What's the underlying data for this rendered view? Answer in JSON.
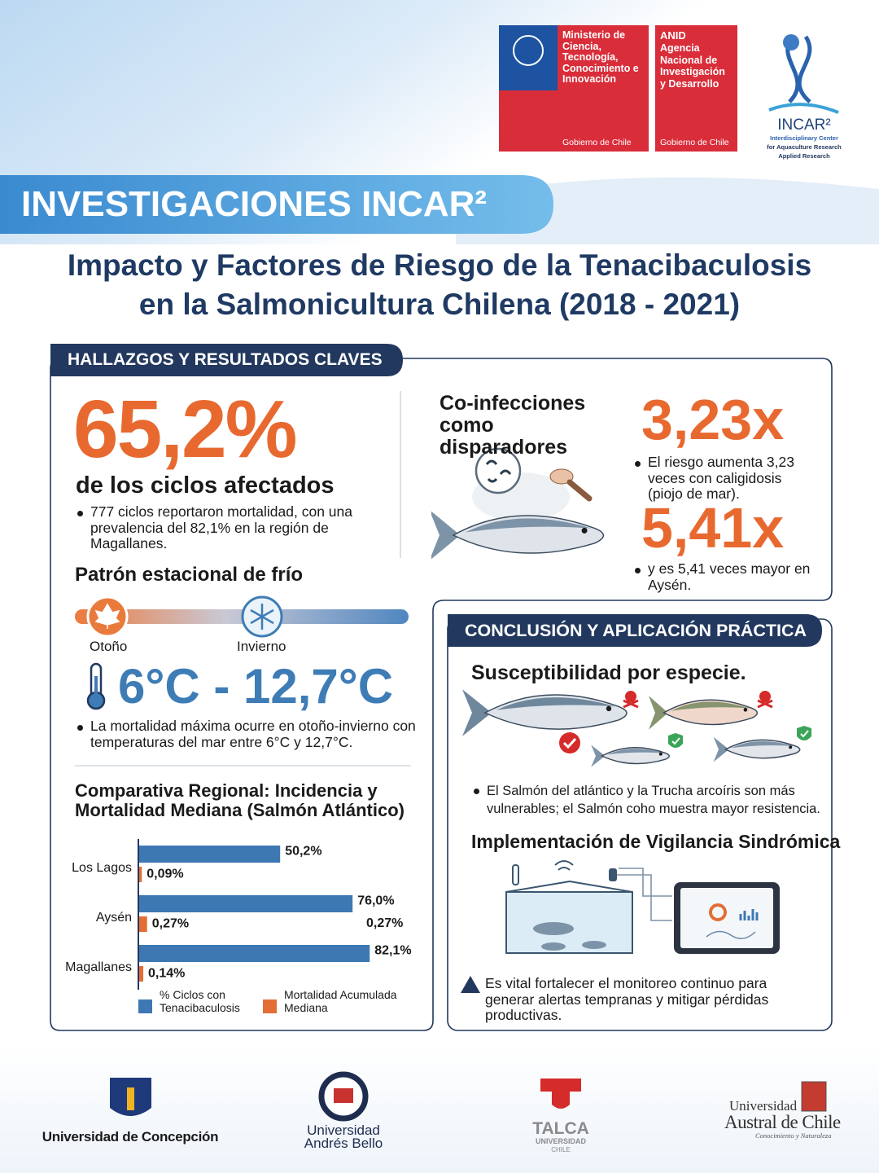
{
  "header": {
    "ministry": {
      "name": "Ministerio de Ciencia, Tecnología, Conocimiento e Innovación",
      "footer": "Gobierno de Chile"
    },
    "anid": {
      "acronym": "ANID",
      "name": "Agencia Nacional de Investigación y Desarrollo",
      "footer": "Gobierno de Chile"
    },
    "incar": {
      "name": "INCAR²",
      "line1": "Interdisciplinary Center",
      "line2": "for Aquaculture Research",
      "line3": "Applied Research"
    }
  },
  "banner": "INVESTIGACIONES INCAR²",
  "title": [
    "Impacto y Factores de Riesgo de la Tenacibaculosis",
    "en la Salmonicultura Chilena (2018 - 2021)"
  ],
  "findings": {
    "tab": "HALLAZGOS Y RESULTADOS CLAVES",
    "headline_stat": "65,2%",
    "headline_label": "de los ciclos afectados",
    "headline_note": "777 ciclos reportaron mortalidad, con una prevalencia del 82,1% en la región de Magallanes.",
    "season": {
      "heading": "Patrón estacional de frío",
      "autumn": "Otoño",
      "winter": "Invierno",
      "range": "6°C - 12,7°C",
      "note": "La mortalidad máxima ocurre en otoño-invierno con temperaturas del mar entre 6°C y 12,7°C."
    },
    "coinfection": {
      "heading": "Co-infecciones como disparadores",
      "stat1": "3,23x",
      "note1": "El riesgo aumenta 3,23 veces con caligidosis (piojo de mar).",
      "stat2": "5,41x",
      "note2": "y es 5,41 veces mayor en Aysén."
    }
  },
  "regional_chart": {
    "type": "bar",
    "orientation": "horizontal",
    "title": "Comparativa Regional: Incidencia y Mortalidad Mediana (Salmón Atlántico)",
    "categories": [
      "Los Lagos",
      "Aysén",
      "Magallanes"
    ],
    "series": [
      {
        "name": "% Ciclos con Tenacibaculosis",
        "color": "#3d78b3",
        "values": [
          50.2,
          76.0,
          82.1
        ],
        "value_labels": [
          "50,2%",
          "76,0%",
          "82,1%"
        ]
      },
      {
        "name": "Mortalidad Acumulada Mediana",
        "color": "#e36d35",
        "values": [
          0.09,
          0.27,
          0.14
        ],
        "value_labels": [
          "0,09%",
          "0,27%",
          "0,14%"
        ]
      }
    ],
    "annotations": [
      "0,27%"
    ]
  },
  "conclusion": {
    "tab": "CONCLUSIÓN Y APLICACIÓN PRÁCTICA",
    "species_heading": "Susceptibilidad por especie.",
    "species_note": "El Salmón del atlántico y la Trucha arcoíris son más vulnerables; el Salmón coho muestra mayor resistencia.",
    "surveillance_heading": "Implementación de Vigilancia Sindrómica",
    "surveillance_note": "Es vital fortalecer el monitoreo continuo para generar alertas tempranas y mitigar pérdidas productivas."
  },
  "footer": {
    "udec": "Universidad de Concepción",
    "unab": [
      "Universidad",
      "Andrés Bello"
    ],
    "talca": {
      "name": "TALCA",
      "line1": "UNIVERSIDAD",
      "line2": "CHILE"
    },
    "austral": {
      "line1": "Universidad",
      "line2": "Austral de Chile",
      "motto": "Conocimiento y Naturaleza"
    }
  }
}
